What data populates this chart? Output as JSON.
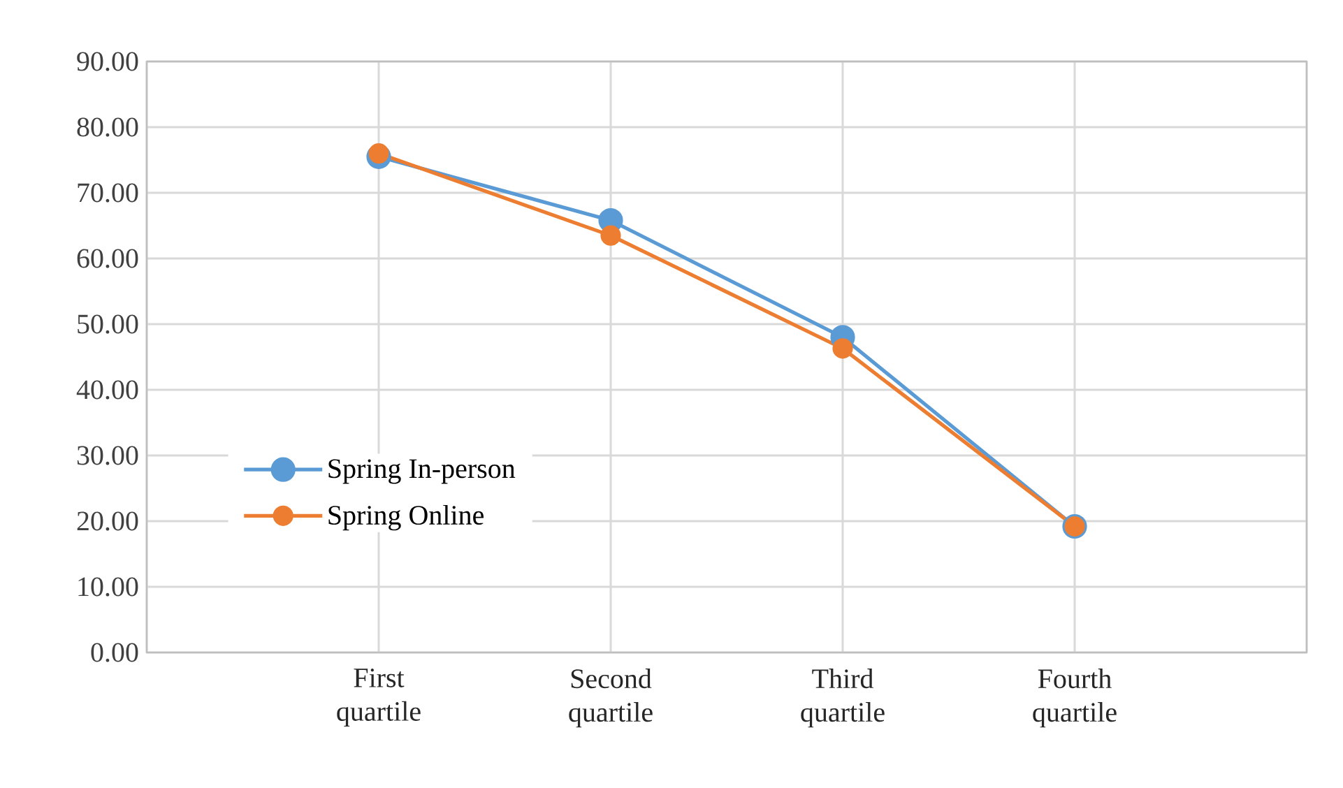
{
  "chart_data": {
    "type": "line",
    "categories": [
      null,
      "First quartile",
      "Second quartile",
      "Third quartile",
      "Fourth quartile",
      null
    ],
    "series": [
      {
        "name": "Spring In-person",
        "color": "#5b9bd5",
        "values": [
          null,
          75.5,
          65.8,
          48.0,
          19.2,
          null
        ]
      },
      {
        "name": "Spring Online",
        "color": "#ed7d31",
        "values": [
          null,
          76.0,
          63.5,
          46.3,
          19.2,
          null
        ]
      }
    ],
    "ylim": [
      0,
      90
    ],
    "yticks": [
      {
        "value": 0,
        "label": "0.00"
      },
      {
        "value": 10,
        "label": "10.00"
      },
      {
        "value": 20,
        "label": "20.00"
      },
      {
        "value": 30,
        "label": "30.00"
      },
      {
        "value": 40,
        "label": "40.00"
      },
      {
        "value": 50,
        "label": "50.00"
      },
      {
        "value": 60,
        "label": "60.00"
      },
      {
        "value": 70,
        "label": "70.00"
      },
      {
        "value": 80,
        "label": "80.00"
      },
      {
        "value": 90,
        "label": "90.00"
      }
    ],
    "grid": true,
    "legend": "left",
    "marker": "circle",
    "line_style": "solid"
  }
}
